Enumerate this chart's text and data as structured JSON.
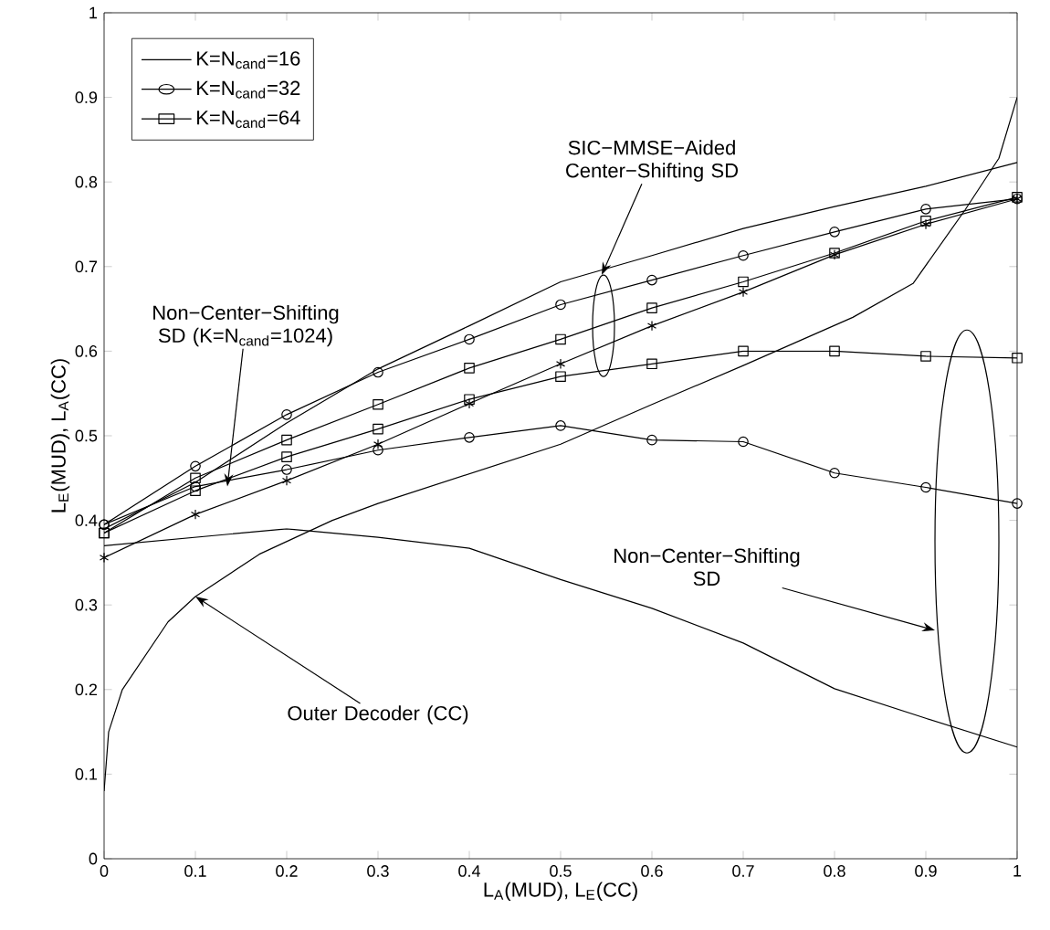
{
  "chart_data": {
    "type": "line",
    "xlabel": "L$_{A}$(MUD), L$_{E}$(CC)",
    "ylabel": "L$_{E}$(MUD), L$_{A}$(CC)",
    "x": [
      0,
      0.1,
      0.2,
      0.3,
      0.4,
      0.5,
      0.6,
      0.7,
      0.8,
      0.9,
      1.0
    ],
    "xlim": [
      0,
      1
    ],
    "ylim": [
      0,
      1
    ],
    "xticks": [
      0,
      0.1,
      0.2,
      0.3,
      0.4,
      0.5,
      0.6,
      0.7,
      0.8,
      0.9,
      1
    ],
    "yticks": [
      0,
      0.1,
      0.2,
      0.3,
      0.4,
      0.5,
      0.6,
      0.7,
      0.8,
      0.9,
      1
    ],
    "legend": "top left",
    "grid": false,
    "series": [
      {
        "name": "K=N$_{cand}$=16",
        "color": "#000000",
        "marker": "none",
        "values": [
          0.39,
          0.445,
          0.515,
          0.579,
          0.63,
          0.682,
          0.713,
          0.745,
          0.771,
          0.795,
          0.823
        ]
      },
      {
        "name": "K=N$_{cand}$=32",
        "color": "#000000",
        "marker": "circle",
        "values": [
          0.395,
          0.464,
          0.525,
          0.575,
          0.614,
          0.655,
          0.684,
          0.713,
          0.741,
          0.768,
          0.78
        ]
      },
      {
        "name": "K=N$_{cand}$=64",
        "color": "#000000",
        "marker": "square",
        "values": [
          0.385,
          0.45,
          0.495,
          0.537,
          0.58,
          0.614,
          0.651,
          0.682,
          0.716,
          0.754,
          0.782
        ]
      },
      {
        "color": "#000000",
        "marker": "cross",
        "values": [
          0.356,
          0.407,
          0.447,
          0.49,
          0.538,
          0.585,
          0.63,
          0.67,
          0.714,
          0.75,
          0.78
        ]
      },
      {
        "color": "#000000",
        "marker": "none",
        "values": [
          0.37,
          0.38,
          0.39,
          0.38,
          0.367,
          0.33,
          0.296,
          0.255,
          0.201,
          0.166,
          0.132
        ]
      },
      {
        "color": "#000000",
        "marker": "circle",
        "values": [
          0.395,
          0.44,
          0.46,
          0.483,
          0.498,
          0.512,
          0.495,
          0.493,
          0.456,
          0.439,
          0.42
        ]
      },
      {
        "color": "#000000",
        "marker": "square",
        "values": [
          0.385,
          0.435,
          0.475,
          0.508,
          0.543,
          0.57,
          0.585,
          0.6,
          0.6,
          0.594,
          0.592
        ]
      },
      {
        "color": "#000000",
        "marker": "none",
        "x": [
          0,
          0.005,
          0.02,
          0.07,
          0.1,
          0.17,
          0.25,
          0.3,
          0.4,
          0.5,
          0.6,
          0.7,
          0.82,
          0.886,
          0.943,
          0.98,
          1.0
        ],
        "values": [
          0.08,
          0.15,
          0.2,
          0.28,
          0.31,
          0.36,
          0.4,
          0.42,
          0.455,
          0.49,
          0.537,
          0.583,
          0.64,
          0.68,
          0.767,
          0.828,
          0.9
        ]
      }
    ],
    "annotations": [
      {
        "text": "SIC−MMSE−Aided Center−Shifting SD",
        "x": 0.545,
        "y": 0.69
      },
      {
        "text": "Non−Center−Shifting SD (K=N$_{cand}$=1024)",
        "x": 0.135,
        "y": 0.44
      },
      "Non−Center−Shifting SD",
      {
        "text": "Outer Decoder (CC)",
        "x": 0.1,
        "y": 0.31
      }
    ]
  }
}
